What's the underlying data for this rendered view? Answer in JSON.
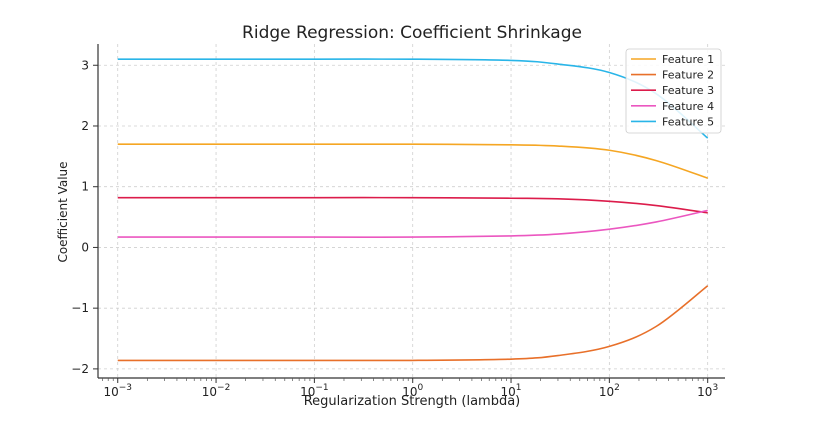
{
  "chart_data": {
    "type": "line",
    "title": "Ridge Regression: Coefficient Shrinkage",
    "xlabel": "Regularization Strength (lambda)",
    "ylabel": "Coefficient Value",
    "x_scale": "log",
    "xlim": [
      0.00063,
      1500
    ],
    "ylim": [
      -2.15,
      3.35
    ],
    "grid": true,
    "legend": "top-right",
    "x_ticks": [
      {
        "value": 0.001,
        "base": "10",
        "exp": "−3"
      },
      {
        "value": 0.01,
        "base": "10",
        "exp": "−2"
      },
      {
        "value": 0.1,
        "base": "10",
        "exp": "−1"
      },
      {
        "value": 1,
        "base": "10",
        "exp": "0"
      },
      {
        "value": 10,
        "base": "10",
        "exp": "1"
      },
      {
        "value": 100,
        "base": "10",
        "exp": "2"
      },
      {
        "value": 1000,
        "base": "10",
        "exp": "3"
      }
    ],
    "y_ticks": [
      {
        "value": -2,
        "label": "−2"
      },
      {
        "value": -1,
        "label": "−1"
      },
      {
        "value": 0,
        "label": "0"
      },
      {
        "value": 1,
        "label": "1"
      },
      {
        "value": 2,
        "label": "2"
      },
      {
        "value": 3,
        "label": "3"
      }
    ],
    "x": [
      0.001,
      0.01,
      0.1,
      1,
      10,
      30,
      100,
      300,
      1000
    ],
    "series": [
      {
        "name": "Feature 1",
        "color": "#F5A623",
        "values": [
          1.7,
          1.7,
          1.7,
          1.7,
          1.69,
          1.67,
          1.6,
          1.43,
          1.14
        ]
      },
      {
        "name": "Feature 2",
        "color": "#E8702A",
        "values": [
          -1.86,
          -1.86,
          -1.86,
          -1.86,
          -1.84,
          -1.78,
          -1.63,
          -1.3,
          -0.63
        ]
      },
      {
        "name": "Feature 3",
        "color": "#DC1C4B",
        "values": [
          0.82,
          0.82,
          0.82,
          0.82,
          0.81,
          0.8,
          0.76,
          0.69,
          0.57
        ]
      },
      {
        "name": "Feature 4",
        "color": "#EB57C0",
        "values": [
          0.17,
          0.17,
          0.17,
          0.17,
          0.19,
          0.22,
          0.3,
          0.42,
          0.61
        ]
      },
      {
        "name": "Feature 5",
        "color": "#29B5E8",
        "values": [
          3.1,
          3.1,
          3.1,
          3.1,
          3.08,
          3.02,
          2.88,
          2.53,
          1.8
        ]
      }
    ]
  }
}
